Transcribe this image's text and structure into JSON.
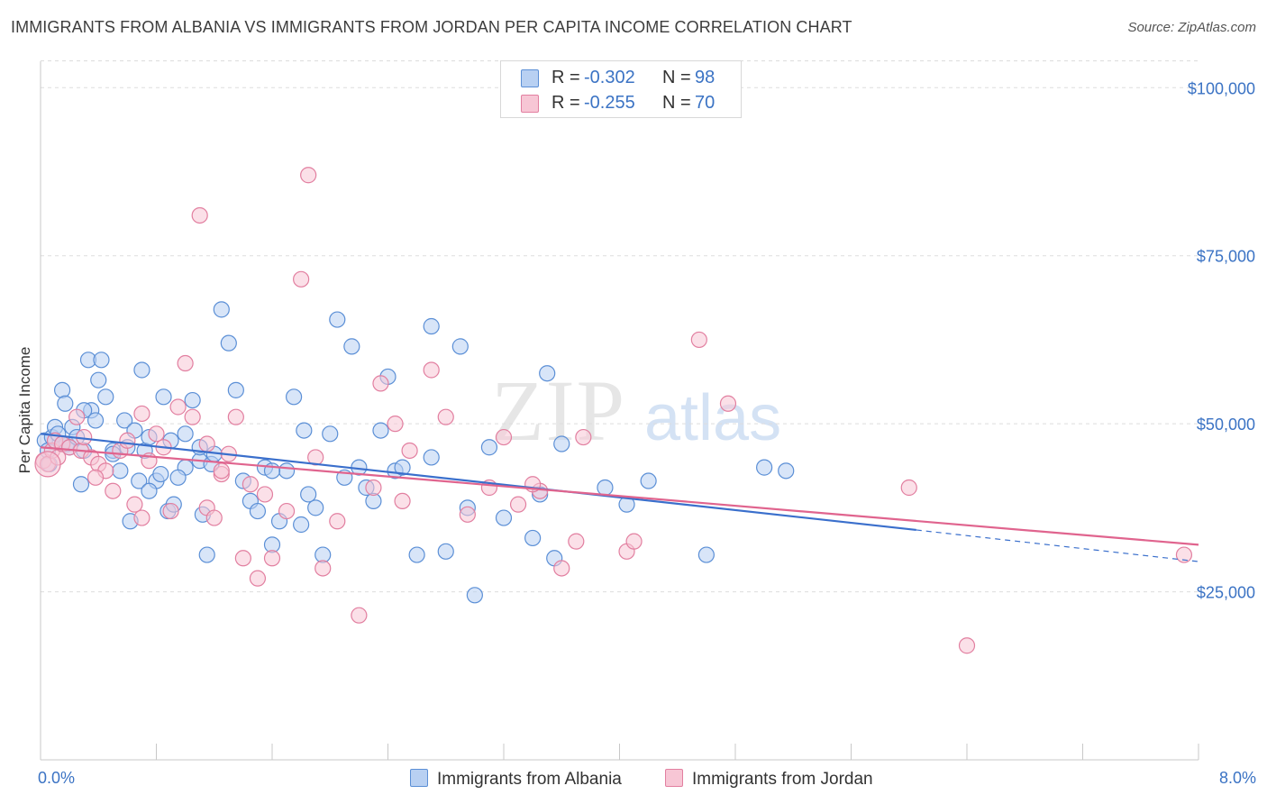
{
  "title": "IMMIGRANTS FROM ALBANIA VS IMMIGRANTS FROM JORDAN PER CAPITA INCOME CORRELATION CHART",
  "source": "Source: ZipAtlas.com",
  "watermark": {
    "zip": "ZIP",
    "atlas": "atlas"
  },
  "legend": {
    "r_label": "R =",
    "n_label": "N =",
    "albania": {
      "r": "-0.302",
      "n": "98"
    },
    "jordan": {
      "r": "-0.255",
      "n": "70"
    }
  },
  "colors": {
    "albania_fill": "#b8d0f2",
    "albania_stroke": "#5b8fd6",
    "albania_line": "#3a6fcc",
    "jordan_fill": "#f7c6d5",
    "jordan_stroke": "#e27fa0",
    "jordan_line": "#e0648e",
    "axis_text": "#3b73c4",
    "grid": "#dddddd"
  },
  "chart_data": {
    "type": "scatter",
    "title": "IMMIGRANTS FROM ALBANIA VS IMMIGRANTS FROM JORDAN PER CAPITA INCOME CORRELATION CHART",
    "xlabel": "",
    "ylabel": "Per Capita Income",
    "xlim": [
      0,
      8
    ],
    "ylim": [
      0,
      105000
    ],
    "x_tick_labels": [
      "0.0%",
      "8.0%"
    ],
    "y_ticks": [
      25000,
      50000,
      75000,
      100000
    ],
    "y_tick_labels": [
      "$25,000",
      "$50,000",
      "$75,000",
      "$100,000"
    ],
    "grid": true,
    "legend_position": "top-center",
    "series": [
      {
        "name": "Immigrants from Albania",
        "r": -0.302,
        "n": 98,
        "trend": {
          "x0": 0.0,
          "y0": 48500,
          "x1": 6.05,
          "y1": 34200,
          "dash_to_x": 8.0,
          "dash_to_y": 29500
        },
        "points": [
          [
            0.03,
            47500
          ],
          [
            0.05,
            46000
          ],
          [
            0.08,
            48000
          ],
          [
            0.1,
            49500
          ],
          [
            0.12,
            48500
          ],
          [
            0.15,
            55000
          ],
          [
            0.17,
            53000
          ],
          [
            0.18,
            47000
          ],
          [
            0.2,
            46500
          ],
          [
            0.22,
            49500
          ],
          [
            0.25,
            48000
          ],
          [
            0.28,
            41000
          ],
          [
            0.3,
            46000
          ],
          [
            0.33,
            59500
          ],
          [
            0.35,
            52000
          ],
          [
            0.38,
            50500
          ],
          [
            0.4,
            56500
          ],
          [
            0.42,
            59500
          ],
          [
            0.45,
            54000
          ],
          [
            0.5,
            46000
          ],
          [
            0.55,
            43000
          ],
          [
            0.58,
            50500
          ],
          [
            0.6,
            46500
          ],
          [
            0.62,
            35500
          ],
          [
            0.65,
            49000
          ],
          [
            0.68,
            41500
          ],
          [
            0.7,
            58000
          ],
          [
            0.72,
            46000
          ],
          [
            0.75,
            48000
          ],
          [
            0.8,
            41500
          ],
          [
            0.83,
            42500
          ],
          [
            0.85,
            54000
          ],
          [
            0.88,
            37000
          ],
          [
            0.9,
            47500
          ],
          [
            0.92,
            38000
          ],
          [
            1.0,
            48500
          ],
          [
            1.0,
            43500
          ],
          [
            1.05,
            53500
          ],
          [
            1.1,
            44500
          ],
          [
            1.12,
            36500
          ],
          [
            1.15,
            30500
          ],
          [
            1.18,
            44000
          ],
          [
            1.2,
            45500
          ],
          [
            1.25,
            67000
          ],
          [
            1.3,
            62000
          ],
          [
            1.35,
            55000
          ],
          [
            1.4,
            41500
          ],
          [
            1.45,
            38500
          ],
          [
            1.5,
            37000
          ],
          [
            1.55,
            43500
          ],
          [
            1.6,
            32000
          ],
          [
            1.65,
            35500
          ],
          [
            1.7,
            43000
          ],
          [
            1.75,
            54000
          ],
          [
            1.8,
            35000
          ],
          [
            1.82,
            49000
          ],
          [
            1.9,
            37500
          ],
          [
            1.95,
            30500
          ],
          [
            2.0,
            48500
          ],
          [
            2.05,
            65500
          ],
          [
            2.1,
            42000
          ],
          [
            2.15,
            61500
          ],
          [
            2.2,
            43500
          ],
          [
            2.25,
            40500
          ],
          [
            2.3,
            38500
          ],
          [
            2.35,
            49000
          ],
          [
            2.4,
            57000
          ],
          [
            2.45,
            43000
          ],
          [
            2.6,
            30500
          ],
          [
            2.7,
            64500
          ],
          [
            2.8,
            31000
          ],
          [
            2.9,
            61500
          ],
          [
            2.95,
            37500
          ],
          [
            3.0,
            24500
          ],
          [
            3.1,
            46500
          ],
          [
            3.2,
            36000
          ],
          [
            3.4,
            33000
          ],
          [
            3.45,
            39500
          ],
          [
            3.5,
            57500
          ],
          [
            3.55,
            30000
          ],
          [
            3.6,
            47000
          ],
          [
            3.9,
            40500
          ],
          [
            4.05,
            38000
          ],
          [
            4.2,
            41500
          ],
          [
            4.6,
            30500
          ],
          [
            5.0,
            43500
          ],
          [
            5.15,
            43000
          ],
          [
            0.06,
            44000
          ],
          [
            0.5,
            45500
          ],
          [
            0.95,
            42000
          ],
          [
            1.6,
            43000
          ],
          [
            0.3,
            52000
          ],
          [
            2.7,
            45000
          ],
          [
            1.1,
            46500
          ],
          [
            0.75,
            40000
          ],
          [
            0.15,
            47000
          ],
          [
            1.85,
            39500
          ],
          [
            2.5,
            43500
          ]
        ]
      },
      {
        "name": "Immigrants from Jordan",
        "r": -0.255,
        "n": 70,
        "trend": {
          "x0": 0.0,
          "y0": 46500,
          "x1": 8.0,
          "y1": 32000
        },
        "points": [
          [
            0.02,
            44500
          ],
          [
            0.05,
            44000
          ],
          [
            0.08,
            46000
          ],
          [
            0.1,
            47500
          ],
          [
            0.12,
            45000
          ],
          [
            0.15,
            47000
          ],
          [
            0.2,
            46500
          ],
          [
            0.25,
            51000
          ],
          [
            0.28,
            46000
          ],
          [
            0.3,
            48000
          ],
          [
            0.35,
            45000
          ],
          [
            0.4,
            44000
          ],
          [
            0.45,
            43000
          ],
          [
            0.5,
            40000
          ],
          [
            0.55,
            46000
          ],
          [
            0.6,
            47500
          ],
          [
            0.65,
            38000
          ],
          [
            0.7,
            51500
          ],
          [
            0.75,
            44500
          ],
          [
            0.8,
            48500
          ],
          [
            0.85,
            46500
          ],
          [
            0.9,
            37000
          ],
          [
            0.95,
            52500
          ],
          [
            1.0,
            59000
          ],
          [
            1.05,
            51000
          ],
          [
            1.1,
            81000
          ],
          [
            1.15,
            37500
          ],
          [
            1.2,
            36000
          ],
          [
            1.25,
            42500
          ],
          [
            1.3,
            45500
          ],
          [
            1.35,
            51000
          ],
          [
            1.4,
            30000
          ],
          [
            1.45,
            41000
          ],
          [
            1.5,
            27000
          ],
          [
            1.55,
            39500
          ],
          [
            1.6,
            30000
          ],
          [
            1.7,
            37000
          ],
          [
            1.8,
            71500
          ],
          [
            1.85,
            87000
          ],
          [
            1.9,
            45000
          ],
          [
            1.95,
            28500
          ],
          [
            2.05,
            35500
          ],
          [
            2.2,
            21500
          ],
          [
            2.3,
            40500
          ],
          [
            2.35,
            56000
          ],
          [
            2.45,
            50000
          ],
          [
            2.55,
            46000
          ],
          [
            2.7,
            58000
          ],
          [
            2.8,
            51000
          ],
          [
            2.95,
            36500
          ],
          [
            3.1,
            40500
          ],
          [
            3.2,
            48000
          ],
          [
            3.3,
            38000
          ],
          [
            3.45,
            40000
          ],
          [
            3.6,
            28500
          ],
          [
            3.75,
            48000
          ],
          [
            3.7,
            32500
          ],
          [
            4.05,
            31000
          ],
          [
            4.1,
            32500
          ],
          [
            4.55,
            62500
          ],
          [
            4.75,
            53000
          ],
          [
            6.0,
            40500
          ],
          [
            6.4,
            17000
          ],
          [
            7.9,
            30500
          ],
          [
            1.15,
            47000
          ],
          [
            0.7,
            36000
          ],
          [
            1.25,
            43000
          ],
          [
            2.5,
            38500
          ],
          [
            3.4,
            41000
          ],
          [
            0.38,
            42000
          ]
        ]
      }
    ]
  },
  "bottom_legend": {
    "albania": "Immigrants from Albania",
    "jordan": "Immigrants from Jordan"
  },
  "axis": {
    "ylabel": "Per Capita Income",
    "xmin_label": "0.0%",
    "xmax_label": "8.0%"
  }
}
